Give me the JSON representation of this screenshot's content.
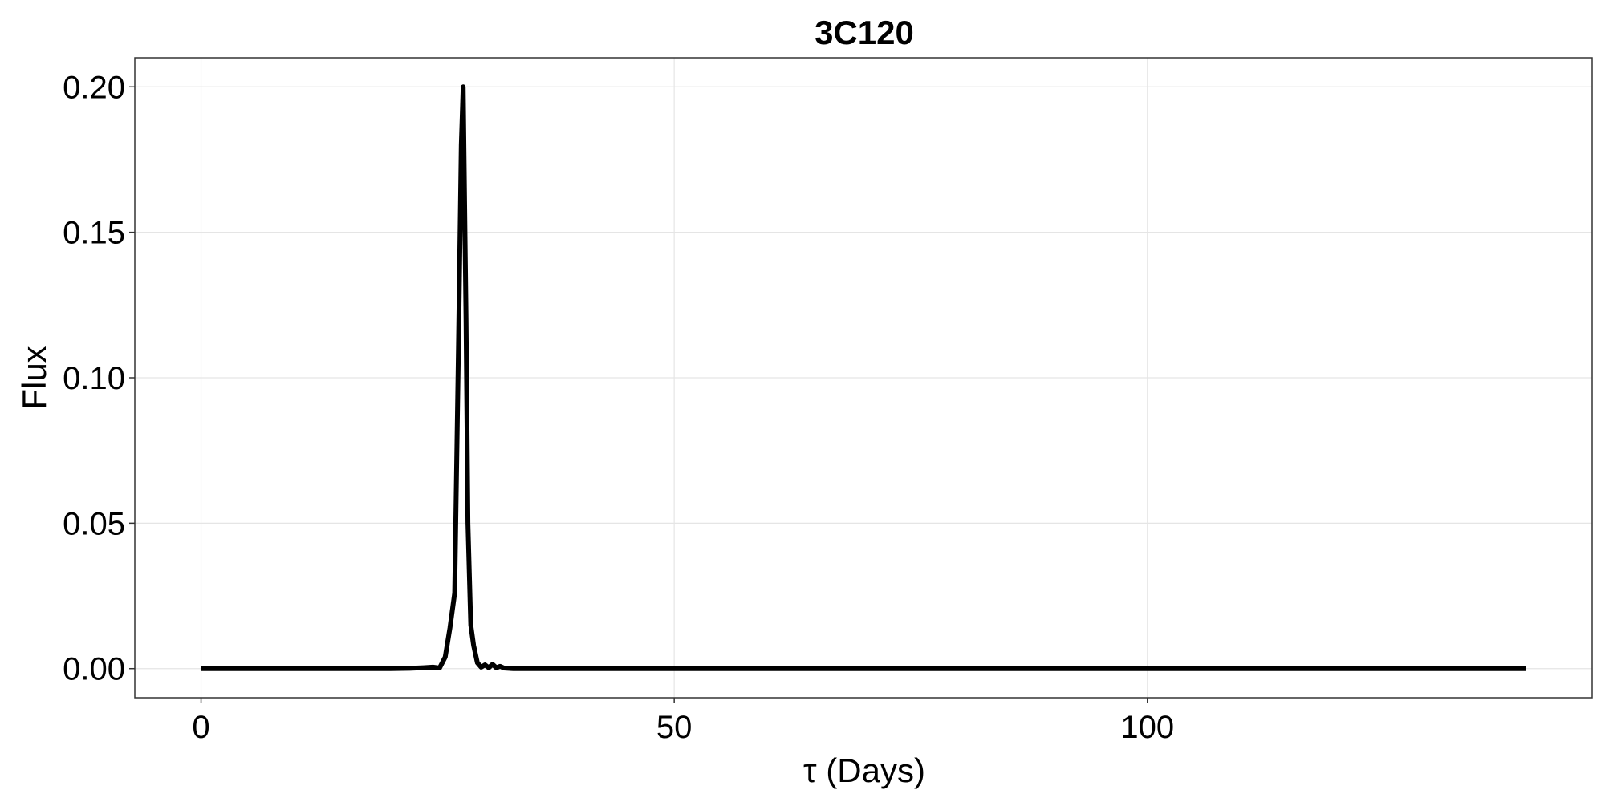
{
  "chart_data": {
    "type": "line",
    "title": "3C120",
    "xlabel": "τ (Days)",
    "ylabel": "Flux",
    "xlim": [
      -7,
      147
    ],
    "ylim": [
      -0.01,
      0.21
    ],
    "xticks": [
      0,
      50,
      100
    ],
    "xtick_labels": [
      "0",
      "50",
      "100"
    ],
    "yticks": [
      0,
      0.05,
      0.1,
      0.15,
      0.2
    ],
    "ytick_labels": [
      "0.00",
      "0.05",
      "0.10",
      "0.15",
      "0.20"
    ],
    "grid": true,
    "line_color": "#000000",
    "grid_color": "#e5e5e5",
    "x": [
      0,
      5,
      10,
      15,
      20,
      22,
      23.5,
      24.5,
      25.2,
      25.8,
      26.3,
      26.8,
      27.2,
      27.5,
      27.7,
      28.0,
      28.2,
      28.5,
      28.8,
      29.2,
      29.6,
      30.0,
      30.4,
      30.8,
      31.2,
      31.6,
      32.0,
      32.5,
      33.0,
      34.0,
      35.0,
      40.0,
      50.0,
      60.0,
      80.0,
      100.0,
      120.0,
      140.0
    ],
    "values": [
      0,
      0,
      0,
      0,
      0,
      0.0001,
      0.0003,
      0.0005,
      0.0002,
      0.004,
      0.014,
      0.026,
      0.11,
      0.18,
      0.2,
      0.12,
      0.05,
      0.015,
      0.008,
      0.002,
      0.0005,
      0.0013,
      0.0003,
      0.0015,
      0.0003,
      0.0008,
      0.0002,
      0.0001,
      0,
      0,
      0,
      0,
      0,
      0,
      0,
      0,
      0,
      0
    ]
  }
}
